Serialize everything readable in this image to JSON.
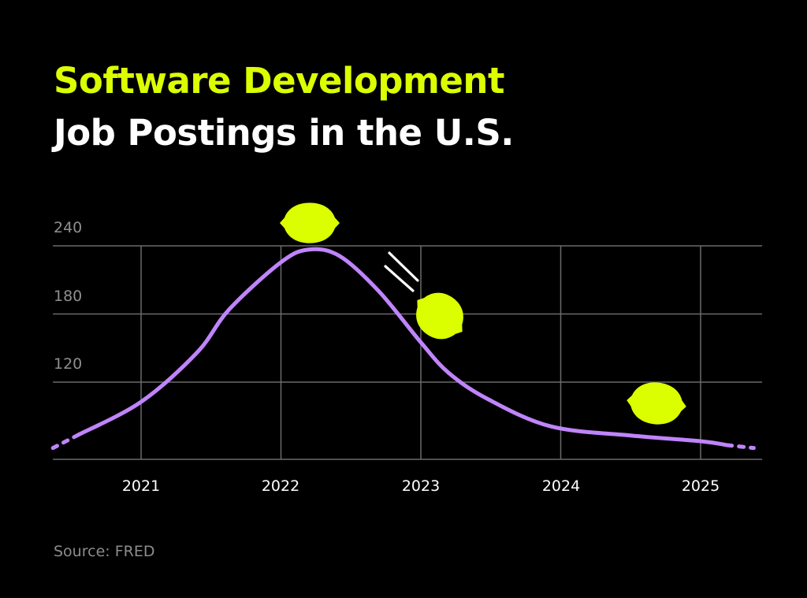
{
  "chart_data": {
    "type": "line",
    "title": "Software Development",
    "subtitle": "Job Postings in the U.S.",
    "xlabel": "",
    "ylabel": "",
    "x_ticks": [
      "2021",
      "2022",
      "2023",
      "2024",
      "2025"
    ],
    "y_ticks": [
      "240",
      "180",
      "120"
    ],
    "xlim": [
      2020.37,
      2025.44
    ],
    "ylim": [
      52,
      240
    ],
    "grid": true,
    "series": [
      {
        "x": [
          2020.55,
          2021.0,
          2021.4,
          2021.63,
          2022.0,
          2022.2,
          2022.42,
          2022.7,
          2023.0,
          2023.2,
          2023.48,
          2023.93,
          2024.5,
          2025.0,
          2025.19
        ],
        "y": [
          73.5,
          102.6,
          146,
          184,
          225.5,
          236.7,
          231,
          200,
          155,
          128,
          105,
          81,
          73,
          68,
          64.5
        ],
        "color": "#c084fc"
      }
    ],
    "dashed_extensions": {
      "start": {
        "x": [
          2020.37,
          2020.55
        ],
        "y": [
          62,
          73.5
        ]
      },
      "end": {
        "x": [
          2025.19,
          2025.38
        ],
        "y": [
          64.5,
          62
        ]
      }
    },
    "colors": {
      "background": "#000000",
      "title_accent": "#dcff00",
      "line": "#c084fc",
      "lemon": "#dcff00",
      "grid": "#6b6b6b"
    },
    "decorations": [
      "lemon-icon",
      "lemon-icon",
      "lemon-icon",
      "motion-lines-icon"
    ]
  },
  "source": "Source: FRED"
}
